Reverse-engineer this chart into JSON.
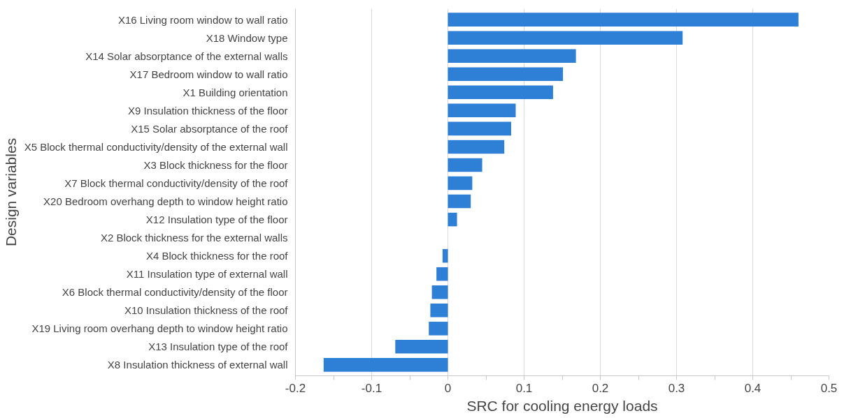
{
  "chart_data": {
    "type": "bar",
    "orientation": "horizontal",
    "xlabel": "SRC for cooling energy loads",
    "ylabel": "Design variables",
    "categories": [
      "X16 Living room window to wall ratio",
      "X18 Window type",
      "X14 Solar absorptance of the external walls",
      "X17 Bedroom window to wall ratio",
      "X1 Building orientation",
      "X9 Insulation thickness of the floor",
      "X15 Solar absorptance of the roof",
      "X5 Block thermal conductivity/density of the external wall",
      "X3 Block thickness for the floor",
      "X7 Block thermal conductivity/density of the roof",
      "X20 Bedroom overhang depth to window height ratio",
      "X12 Insulation type of the floor",
      "X2 Block thickness for the external walls",
      "X4 Block thickness for the roof",
      "X11 Insulation type of external wall",
      "X6 Block thermal conductivity/density of the floor",
      "X10 Insulation thickness of the roof",
      "X19 Living room overhang depth to window height ratio",
      "X13 Insulation type of the roof",
      "X8 Insulation thickness of external wall"
    ],
    "values": [
      0.46,
      0.308,
      0.168,
      0.151,
      0.138,
      0.089,
      0.083,
      0.074,
      0.045,
      0.032,
      0.03,
      0.012,
      0,
      -0.007,
      -0.015,
      -0.021,
      -0.023,
      -0.025,
      -0.069,
      -0.163
    ],
    "color": "#2e7fd6",
    "xlim": [
      -0.2,
      0.5
    ],
    "xticks": [
      -0.2,
      {
        "value": -0.15,
        "label": null
      },
      -0.1,
      {
        "value": -0.05,
        "label": null
      },
      0,
      {
        "value": 0.05,
        "label": null
      },
      0.1,
      {
        "value": 0.15,
        "label": null
      },
      0.2,
      {
        "value": 0.25,
        "label": null
      },
      0.3,
      {
        "value": 0.35,
        "label": null
      },
      0.4,
      {
        "value": 0.45,
        "label": null
      },
      0.5
    ],
    "grid": "x"
  }
}
